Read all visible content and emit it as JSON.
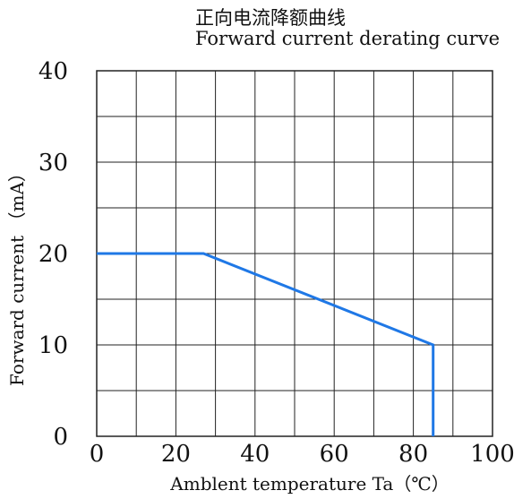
{
  "chart_data": {
    "type": "line",
    "title": "正向电流降额曲线",
    "subtitle": "Forward current derating curve",
    "xlabel": "Amblent temperature Ta（℃）",
    "ylabel": "Forward current  （mA）",
    "xlim": [
      0,
      100
    ],
    "ylim": [
      0,
      40
    ],
    "x_ticks": [
      0,
      20,
      40,
      60,
      80,
      100
    ],
    "y_ticks": [
      0,
      10,
      20,
      30,
      40
    ],
    "x_tick_labels": [
      "0",
      "20",
      "40",
      "60",
      "80",
      "100"
    ],
    "y_tick_labels": [
      "0",
      "10",
      "20",
      "30",
      "40"
    ],
    "grid": true,
    "x_grid_step": 10,
    "y_grid_step": 5,
    "legend": "none",
    "series": [
      {
        "color": "#1f78e6",
        "x": [
          0,
          27,
          85,
          85
        ],
        "y": [
          20,
          20,
          10,
          0
        ]
      }
    ]
  }
}
